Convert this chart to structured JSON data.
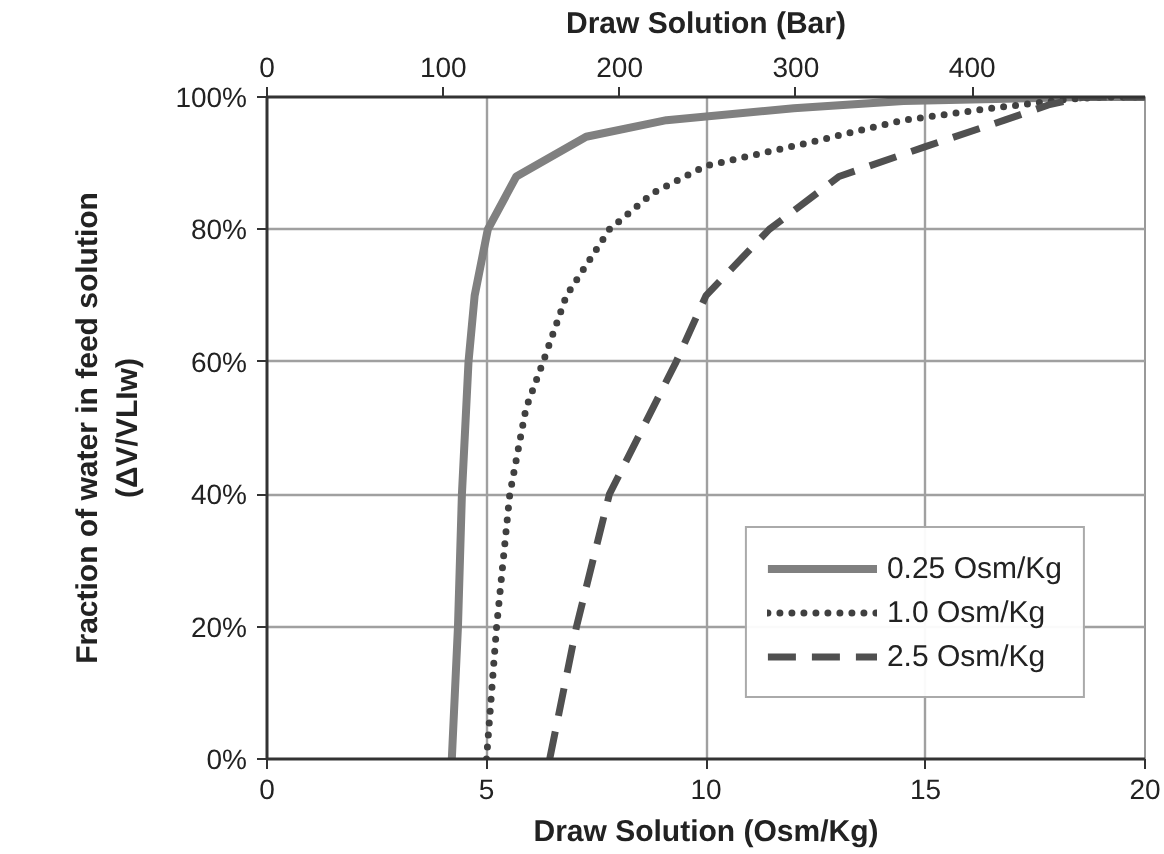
{
  "chart_data": {
    "type": "line",
    "xlabel": "Draw Solution (Osm/Kg)",
    "x2label": "Draw Solution (Bar)",
    "ylabel": "Fraction of water in feed solution\n(ΔV/VLIw)",
    "xlim": [
      0,
      20
    ],
    "xticks": [
      0,
      5,
      10,
      15,
      20
    ],
    "x2lim": [
      0,
      498
    ],
    "x2ticks": [
      0,
      100,
      200,
      300,
      400
    ],
    "ylim": [
      0,
      100
    ],
    "yticks": [
      {
        "value": 0,
        "label": "0%"
      },
      {
        "value": 20,
        "label": "20%"
      },
      {
        "value": 40,
        "label": "40%"
      },
      {
        "value": 60,
        "label": "60%"
      },
      {
        "value": 80,
        "label": "80%"
      },
      {
        "value": 100,
        "label": "100%"
      }
    ],
    "grid": true,
    "legend": "bottom right",
    "marker": "none",
    "series": [
      {
        "name": "0.25 Osm/Kg",
        "color": "#808080",
        "line_style": "solid",
        "x": [
          4.21,
          4.35,
          4.44,
          4.59,
          4.73,
          5.03,
          5.68,
          7.27,
          9.1,
          12,
          14.5,
          18.6,
          20
        ],
        "values": [
          0,
          20,
          40,
          60,
          70,
          80,
          88,
          94,
          96.5,
          98.3,
          99.4,
          100,
          100
        ]
      },
      {
        "name": "1.0 Osm/Kg",
        "color": "#404040",
        "line_style": "dotted",
        "x": [
          5.0,
          5.23,
          5.53,
          5.9,
          6.29,
          6.82,
          7.8,
          8.79,
          10,
          12.27,
          14.5,
          16.5,
          18.3,
          19.1,
          20
        ],
        "values": [
          0,
          20,
          40,
          53,
          60,
          70,
          80,
          85.5,
          89.6,
          93,
          96.5,
          98.3,
          99.7,
          100,
          100
        ]
      },
      {
        "name": "2.5 Osm/Kg",
        "color": "#505050",
        "line_style": "dashed",
        "x": [
          6.44,
          7.05,
          7.8,
          9.32,
          10,
          11.44,
          13.03,
          15,
          16.8,
          17.8,
          18.6,
          20
        ],
        "values": [
          0,
          20,
          40,
          60,
          70,
          80,
          88,
          92.5,
          96.5,
          98.8,
          100,
          100
        ]
      }
    ]
  }
}
